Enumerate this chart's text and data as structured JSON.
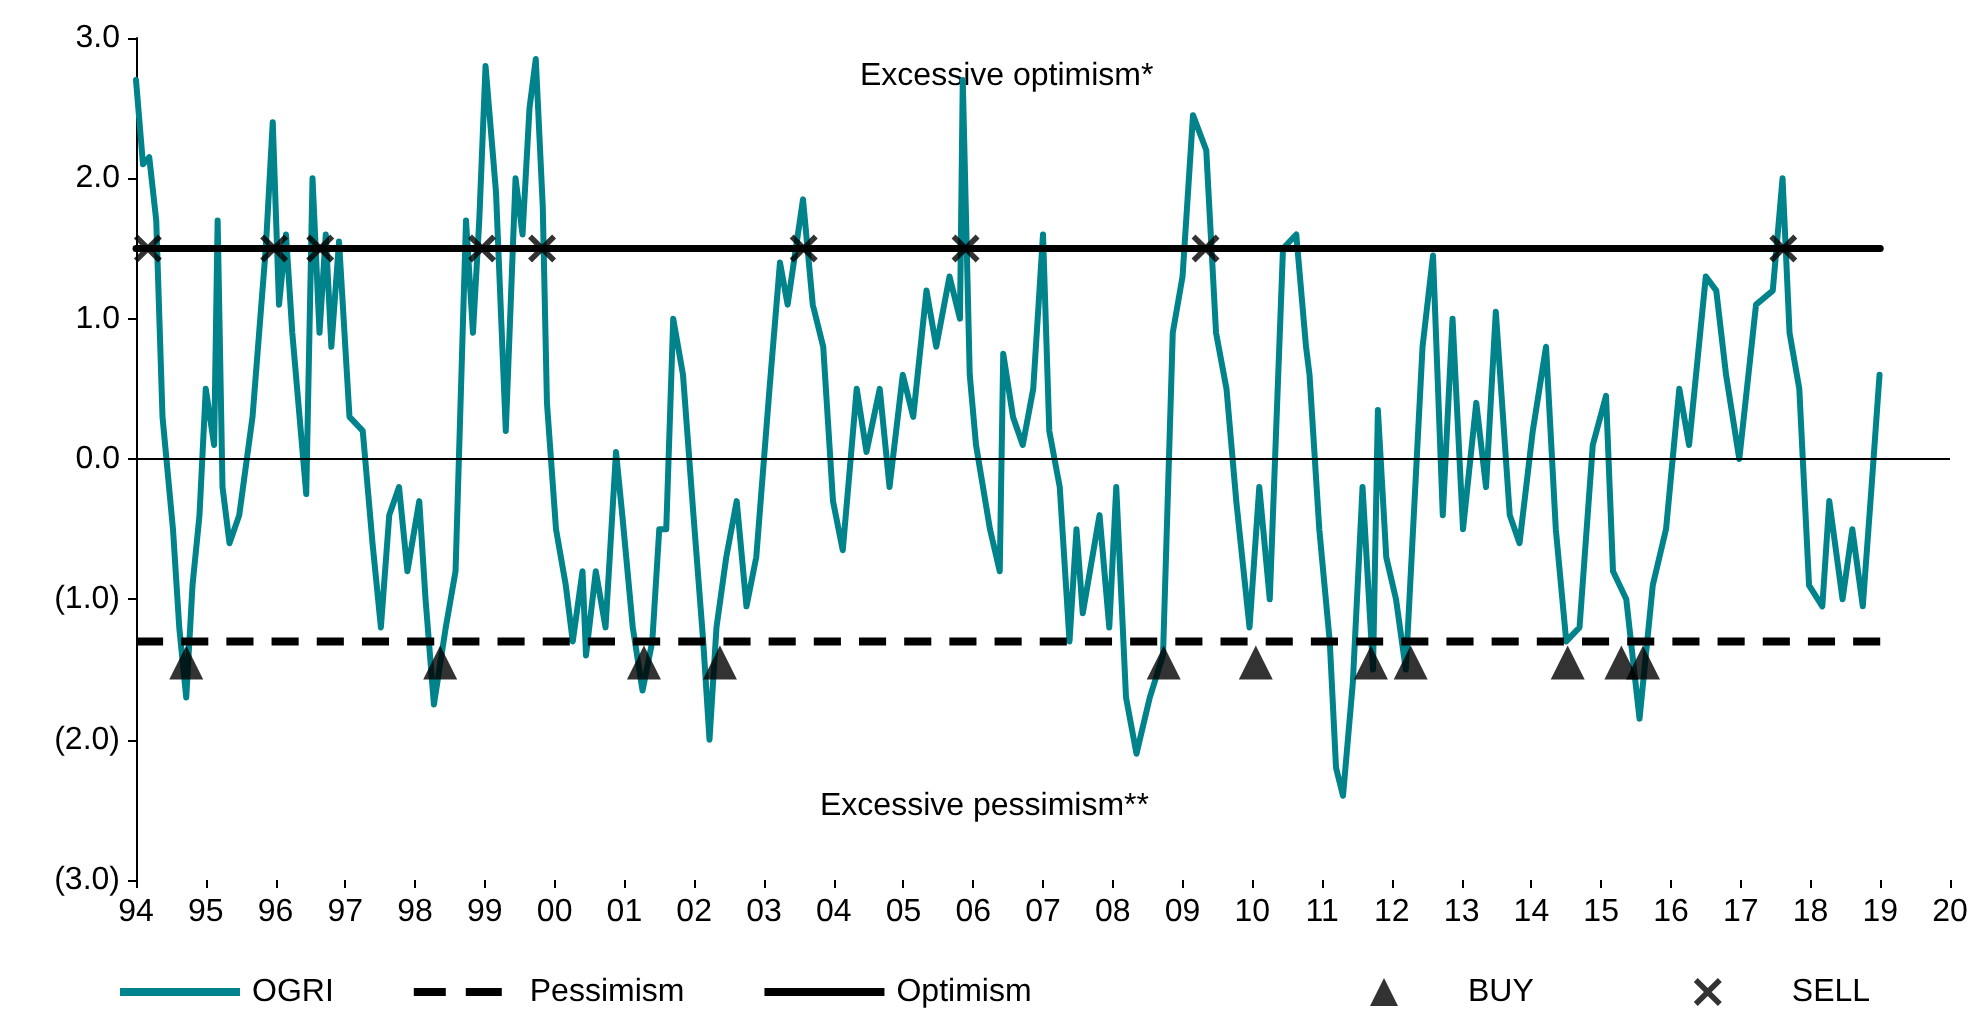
{
  "chart_data": {
    "type": "line",
    "annotations": [
      "Excessive optimism*",
      "Excessive pessimism**"
    ],
    "xlim": [
      1994,
      2020
    ],
    "xticks": [
      {
        "value": 1994,
        "label": "94"
      },
      {
        "value": 1995,
        "label": "95"
      },
      {
        "value": 1996,
        "label": "96"
      },
      {
        "value": 1997,
        "label": "97"
      },
      {
        "value": 1998,
        "label": "98"
      },
      {
        "value": 1999,
        "label": "99"
      },
      {
        "value": 2000,
        "label": "00"
      },
      {
        "value": 2001,
        "label": "01"
      },
      {
        "value": 2002,
        "label": "02"
      },
      {
        "value": 2003,
        "label": "03"
      },
      {
        "value": 2004,
        "label": "04"
      },
      {
        "value": 2005,
        "label": "05"
      },
      {
        "value": 2006,
        "label": "06"
      },
      {
        "value": 2007,
        "label": "07"
      },
      {
        "value": 2008,
        "label": "08"
      },
      {
        "value": 2009,
        "label": "09"
      },
      {
        "value": 2010,
        "label": "10"
      },
      {
        "value": 2011,
        "label": "11"
      },
      {
        "value": 2012,
        "label": "12"
      },
      {
        "value": 2013,
        "label": "13"
      },
      {
        "value": 2014,
        "label": "14"
      },
      {
        "value": 2015,
        "label": "15"
      },
      {
        "value": 2016,
        "label": "16"
      },
      {
        "value": 2017,
        "label": "17"
      },
      {
        "value": 2018,
        "label": "18"
      },
      {
        "value": 2019,
        "label": "19"
      },
      {
        "value": 2020,
        "label": "20"
      }
    ],
    "ylim": [
      -3,
      3
    ],
    "yticks": [
      {
        "value": 3,
        "label": "3.0"
      },
      {
        "value": 2,
        "label": "2.0"
      },
      {
        "value": 1,
        "label": "1.0"
      },
      {
        "value": 0,
        "label": "0.0"
      },
      {
        "value": -1,
        "label": "(1.0)"
      },
      {
        "value": -2,
        "label": "(2.0)"
      },
      {
        "value": -3,
        "label": "(3.0)"
      }
    ],
    "ref_lines": [
      {
        "axis": "y",
        "value": 0,
        "color": "#000000"
      }
    ],
    "grid": false,
    "legend": "bottom",
    "series": [
      {
        "name": "OGRI",
        "color": "#00838a",
        "marker": "none",
        "line_style": "solid",
        "x": [
          1994.0,
          1994.1,
          1994.19,
          1994.29,
          1994.38,
          1994.53,
          1994.62,
          1994.72,
          1994.81,
          1994.91,
          1995.0,
          1995.12,
          1995.17,
          1995.24,
          1995.34,
          1995.48,
          1995.67,
          1995.86,
          1995.96,
          1996.05,
          1996.15,
          1996.24,
          1996.44,
          1996.53,
          1996.63,
          1996.72,
          1996.8,
          1996.91,
          1997.06,
          1997.25,
          1997.39,
          1997.51,
          1997.63,
          1997.77,
          1997.89,
          1998.06,
          1998.15,
          1998.27,
          1998.44,
          1998.58,
          1998.73,
          1998.83,
          1998.92,
          1999.01,
          1999.16,
          1999.3,
          1999.44,
          1999.54,
          1999.64,
          1999.73,
          1999.83,
          1999.89,
          2000.02,
          2000.16,
          2000.26,
          2000.4,
          2000.45,
          2000.59,
          2000.73,
          2000.88,
          2000.97,
          2001.12,
          2001.26,
          2001.4,
          2001.5,
          2001.6,
          2001.7,
          2001.84,
          2001.99,
          2002.13,
          2002.22,
          2002.32,
          2002.46,
          2002.61,
          2002.75,
          2002.89,
          2003.08,
          2003.23,
          2003.34,
          2003.56,
          2003.7,
          2003.85,
          2003.99,
          2004.13,
          2004.33,
          2004.47,
          2004.66,
          2004.8,
          2004.99,
          2005.14,
          2005.33,
          2005.47,
          2005.66,
          2005.81,
          2005.85,
          2005.95,
          2006.04,
          2006.24,
          2006.38,
          2006.43,
          2006.57,
          2006.71,
          2006.86,
          2007.0,
          2007.09,
          2007.24,
          2007.38,
          2007.48,
          2007.57,
          2007.81,
          2007.95,
          2008.05,
          2008.19,
          2008.34,
          2008.53,
          2008.72,
          2008.86,
          2009.0,
          2009.15,
          2009.34,
          2009.48,
          2009.63,
          2009.77,
          2009.96,
          2010.1,
          2010.25,
          2010.44,
          2010.63,
          2010.77,
          2010.82,
          2010.96,
          2011.11,
          2011.2,
          2011.3,
          2011.44,
          2011.58,
          2011.73,
          2011.8,
          2011.92,
          2012.06,
          2012.2,
          2012.44,
          2012.59,
          2012.73,
          2012.87,
          2013.02,
          2013.21,
          2013.35,
          2013.49,
          2013.69,
          2013.83,
          2014.02,
          2014.21,
          2014.35,
          2014.5,
          2014.69,
          2014.88,
          2015.07,
          2015.17,
          2015.36,
          2015.55,
          2015.74,
          2015.93,
          2016.12,
          2016.26,
          2016.5,
          2016.65,
          2016.79,
          2016.98,
          2017.22,
          2017.46,
          2017.6,
          2017.7,
          2017.84,
          2017.98,
          2018.17,
          2018.27,
          2018.46,
          2018.6,
          2018.75,
          2018.89,
          2018.99
        ],
        "values": [
          2.7,
          2.1,
          2.15,
          1.7,
          0.3,
          -0.5,
          -1.2,
          -1.7,
          -0.9,
          -0.4,
          0.5,
          0.1,
          1.7,
          -0.2,
          -0.6,
          -0.4,
          0.3,
          1.5,
          2.4,
          1.1,
          1.6,
          0.9,
          -0.25,
          2.0,
          0.9,
          1.6,
          0.8,
          1.55,
          0.3,
          0.2,
          -0.6,
          -1.2,
          -0.4,
          -0.2,
          -0.8,
          -0.3,
          -1.0,
          -1.75,
          -1.2,
          -0.8,
          1.7,
          0.9,
          1.7,
          2.8,
          1.9,
          0.2,
          2.0,
          1.6,
          2.5,
          2.85,
          1.8,
          0.4,
          -0.5,
          -0.9,
          -1.3,
          -0.8,
          -1.4,
          -0.8,
          -1.2,
          0.05,
          -0.4,
          -1.2,
          -1.65,
          -1.3,
          -0.5,
          -0.5,
          1.0,
          0.6,
          -0.4,
          -1.3,
          -2.0,
          -1.2,
          -0.7,
          -0.3,
          -1.05,
          -0.7,
          0.5,
          1.4,
          1.1,
          1.85,
          1.1,
          0.8,
          -0.3,
          -0.65,
          0.5,
          0.05,
          0.5,
          -0.2,
          0.6,
          0.3,
          1.2,
          0.8,
          1.3,
          1.0,
          2.7,
          0.6,
          0.1,
          -0.5,
          -0.8,
          0.75,
          0.3,
          0.1,
          0.5,
          1.6,
          0.2,
          -0.2,
          -1.3,
          -0.5,
          -1.1,
          -0.4,
          -1.2,
          -0.2,
          -1.7,
          -2.1,
          -1.7,
          -1.4,
          0.9,
          1.3,
          2.45,
          2.2,
          0.9,
          0.5,
          -0.3,
          -1.2,
          -0.2,
          -1.0,
          1.5,
          1.6,
          0.8,
          0.6,
          -0.5,
          -1.3,
          -2.2,
          -2.4,
          -1.6,
          -0.2,
          -1.5,
          0.35,
          -0.7,
          -1.0,
          -1.5,
          0.8,
          1.45,
          -0.4,
          1.0,
          -0.5,
          0.4,
          -0.2,
          1.05,
          -0.4,
          -0.6,
          0.2,
          0.8,
          -0.5,
          -1.3,
          -1.2,
          0.1,
          0.45,
          -0.8,
          -1.0,
          -1.85,
          -0.9,
          -0.5,
          0.5,
          0.1,
          1.3,
          1.2,
          0.6,
          0.0,
          1.1,
          1.2,
          2.0,
          0.9,
          0.5,
          -0.9,
          -1.05,
          -0.3,
          -1.0,
          -0.5,
          -1.05,
          -0.1,
          0.6
        ]
      },
      {
        "name": "Pessimism",
        "color": "#000000",
        "marker": "none",
        "line_style": "dashed",
        "x": [
          1994,
          2019
        ],
        "values": [
          -1.3,
          -1.3
        ]
      },
      {
        "name": "Optimism",
        "color": "#000000",
        "marker": "none",
        "line_style": "solid",
        "x": [
          1994,
          2019
        ],
        "values": [
          1.5,
          1.5
        ]
      },
      {
        "name": "BUY",
        "type": "scatter",
        "color": "#000000",
        "marker": "triangle",
        "x": [
          1994.72,
          1998.36,
          2001.28,
          2002.37,
          2008.73,
          2010.05,
          2011.7,
          2012.27,
          2014.52,
          2015.29,
          2015.6
        ],
        "values": [
          -1.45,
          -1.45,
          -1.45,
          -1.45,
          -1.45,
          -1.45,
          -1.45,
          -1.45,
          -1.45,
          -1.45,
          -1.45
        ]
      },
      {
        "name": "SELL",
        "type": "scatter",
        "color": "#000000",
        "marker": "cross",
        "x": [
          1994.17,
          1995.98,
          1996.64,
          1998.96,
          1999.82,
          2003.57,
          2005.89,
          2009.33,
          2017.61
        ],
        "values": [
          1.5,
          1.5,
          1.5,
          1.5,
          1.5,
          1.5,
          1.5,
          1.5,
          1.5
        ]
      }
    ]
  }
}
